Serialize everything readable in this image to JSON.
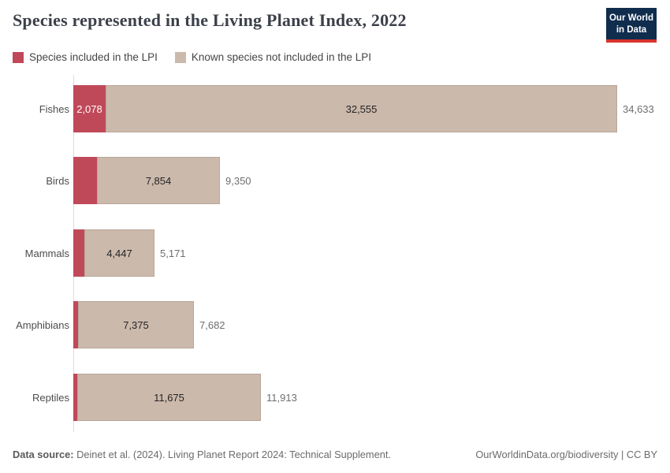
{
  "header": {
    "title": "Species represented in the Living Planet Index, 2022",
    "logo_line1": "Our World",
    "logo_line2": "in Data"
  },
  "legend": {
    "items": [
      {
        "label": "Species included in the LPI",
        "color": "#c04959"
      },
      {
        "label": "Known species not included in the LPI",
        "color": "#cbb9ac"
      }
    ]
  },
  "chart_data": {
    "type": "bar",
    "orientation": "horizontal",
    "stacked": true,
    "title": "Species represented in the Living Planet Index, 2022",
    "categories": [
      "Fishes",
      "Birds",
      "Mammals",
      "Amphibians",
      "Reptiles"
    ],
    "series": [
      {
        "name": "Species included in the LPI",
        "color": "#c04959",
        "values": [
          2078,
          1496,
          724,
          307,
          238
        ]
      },
      {
        "name": "Known species not included in the LPI",
        "color": "#cbb9ac",
        "values": [
          32555,
          7854,
          4447,
          7375,
          11675
        ]
      }
    ],
    "totals": [
      34633,
      9350,
      5171,
      7682,
      11913
    ],
    "xlim": [
      0,
      38000
    ],
    "grid": false,
    "legend_position": "top-left",
    "rows": [
      {
        "category": "Fishes",
        "included": 2078,
        "included_label": "2,078",
        "not_included": 32555,
        "not_included_label": "32,555",
        "total": 34633,
        "total_label": "34,633"
      },
      {
        "category": "Birds",
        "included": 1496,
        "included_label": "",
        "not_included": 7854,
        "not_included_label": "7,854",
        "total": 9350,
        "total_label": "9,350"
      },
      {
        "category": "Mammals",
        "included": 724,
        "included_label": "",
        "not_included": 4447,
        "not_included_label": "4,447",
        "total": 5171,
        "total_label": "5,171"
      },
      {
        "category": "Amphibians",
        "included": 307,
        "included_label": "",
        "not_included": 7375,
        "not_included_label": "7,375",
        "total": 7682,
        "total_label": "7,682"
      },
      {
        "category": "Reptiles",
        "included": 238,
        "included_label": "",
        "not_included": 11675,
        "not_included_label": "11,675",
        "total": 11913,
        "total_label": "11,913"
      }
    ]
  },
  "colors": {
    "included": "#c04959",
    "not_included": "#cbb9ac",
    "axis_line": "#dcdcdc",
    "title_text": "#3c4049",
    "category_label": "#4d4d4d",
    "bar_value_label": "#242424",
    "included_value_label": "#ffffff",
    "total_label": "#6e6e6e",
    "logo_bg": "#102d4e",
    "logo_stripe": "#d7342c"
  },
  "footer": {
    "source_label": "Data source:",
    "source_text": " Deinet et al. (2024). Living Planet Report 2024: Technical Supplement.",
    "credit": "OurWorldinData.org/biodiversity | CC BY"
  }
}
